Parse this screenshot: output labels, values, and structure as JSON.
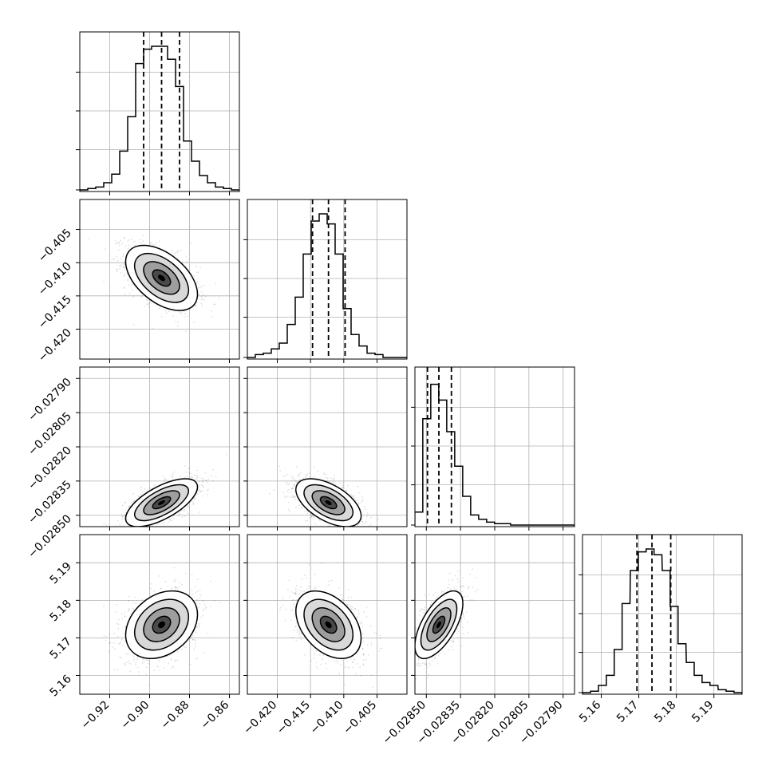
{
  "chart_data": {
    "type": "corner",
    "grid": true,
    "quantiles": [
      0.16,
      0.5,
      0.84
    ],
    "parameters": [
      {
        "range": [
          -0.935,
          -0.855
        ],
        "ticks": [
          -0.92,
          -0.9,
          -0.88,
          -0.86
        ],
        "tick_labels": [
          "−0.92",
          "−0.90",
          "−0.88",
          "−0.86"
        ],
        "median": -0.894,
        "q16": -0.903,
        "q84": -0.885,
        "hist_x": [
          -0.933,
          -0.929,
          -0.925,
          -0.921,
          -0.917,
          -0.913,
          -0.909,
          -0.905,
          -0.901,
          -0.897,
          -0.893,
          -0.889,
          -0.885,
          -0.881,
          -0.877,
          -0.873,
          -0.869,
          -0.865,
          -0.861,
          -0.857
        ],
        "hist_density": [
          0.0,
          0.01,
          0.02,
          0.05,
          0.11,
          0.27,
          0.51,
          0.88,
          0.98,
          1.0,
          1.0,
          0.91,
          0.72,
          0.34,
          0.2,
          0.1,
          0.05,
          0.02,
          0.01,
          0.0
        ]
      },
      {
        "range": [
          -0.4245,
          -0.4005
        ],
        "ticks": [
          -0.42,
          -0.415,
          -0.41,
          -0.405
        ],
        "tick_labels": [
          "−0.420",
          "−0.415",
          "−0.410",
          "−0.405"
        ],
        "median": -0.4123,
        "q16": -0.4147,
        "q84": -0.4098,
        "hist_x": [
          -0.4239,
          -0.4227,
          -0.4215,
          -0.4203,
          -0.4191,
          -0.4179,
          -0.4167,
          -0.4155,
          -0.4143,
          -0.4131,
          -0.4119,
          -0.4107,
          -0.4095,
          -0.4083,
          -0.4071,
          -0.4059,
          -0.4047,
          -0.4035,
          -0.4023,
          -0.4011
        ],
        "hist_density": [
          0.0,
          0.02,
          0.03,
          0.06,
          0.1,
          0.23,
          0.42,
          0.72,
          0.95,
          1.0,
          0.93,
          0.72,
          0.34,
          0.16,
          0.08,
          0.03,
          0.02,
          0.0,
          0.0,
          0.0
        ]
      },
      {
        "range": [
          -0.02855,
          -0.02785
        ],
        "ticks": [
          -0.0285,
          -0.02835,
          -0.0282,
          -0.02805,
          -0.0279
        ],
        "tick_labels": [
          "−0.02850",
          "−0.02835",
          "−0.02820",
          "−0.02805",
          "−0.02790"
        ],
        "median": -0.028445,
        "q16": -0.028495,
        "q84": -0.02839,
        "hist_x": [
          -0.028533,
          -0.028498,
          -0.028463,
          -0.028428,
          -0.028393,
          -0.028358,
          -0.028323,
          -0.028288,
          -0.028253,
          -0.028218,
          -0.028183,
          -0.028148,
          -0.028113,
          -0.028078,
          -0.028043,
          -0.028008,
          -0.027973,
          -0.027938,
          -0.027903,
          -0.027868
        ],
        "hist_density": [
          0.09,
          0.74,
          0.98,
          0.87,
          0.65,
          0.41,
          0.2,
          0.07,
          0.04,
          0.02,
          0.01,
          0.01,
          0.0,
          0.0,
          0.0,
          0.0,
          0.0,
          0.0,
          0.0,
          0.0
        ]
      },
      {
        "range": [
          5.155,
          5.1975
        ],
        "ticks": [
          5.16,
          5.17,
          5.18,
          5.19
        ],
        "tick_labels": [
          "5.16",
          "5.17",
          "5.18",
          "5.19"
        ],
        "median": 5.1735,
        "q16": 5.1695,
        "q84": 5.1785,
        "hist_x": [
          5.1561,
          5.1582,
          5.1603,
          5.1624,
          5.1645,
          5.1666,
          5.1688,
          5.1709,
          5.173,
          5.1751,
          5.1773,
          5.1794,
          5.1815,
          5.1837,
          5.1858,
          5.1879,
          5.19,
          5.1922,
          5.1943,
          5.1964
        ],
        "hist_density": [
          0.0,
          0.01,
          0.05,
          0.12,
          0.3,
          0.62,
          0.85,
          0.98,
          1.0,
          0.96,
          0.85,
          0.6,
          0.34,
          0.21,
          0.12,
          0.07,
          0.05,
          0.02,
          0.01,
          0.0
        ]
      }
    ],
    "correlations": {
      "1_0": -0.5,
      "2_0": 0.66,
      "2_1": -0.55,
      "3_0": 0.3,
      "3_1": -0.4,
      "3_2": 0.62
    },
    "contour_levels": [
      0.5,
      1.0,
      1.5,
      2.0
    ],
    "colors": {
      "line": "#000000",
      "grid": "#b0b0b0",
      "scatter": "#000000"
    }
  }
}
